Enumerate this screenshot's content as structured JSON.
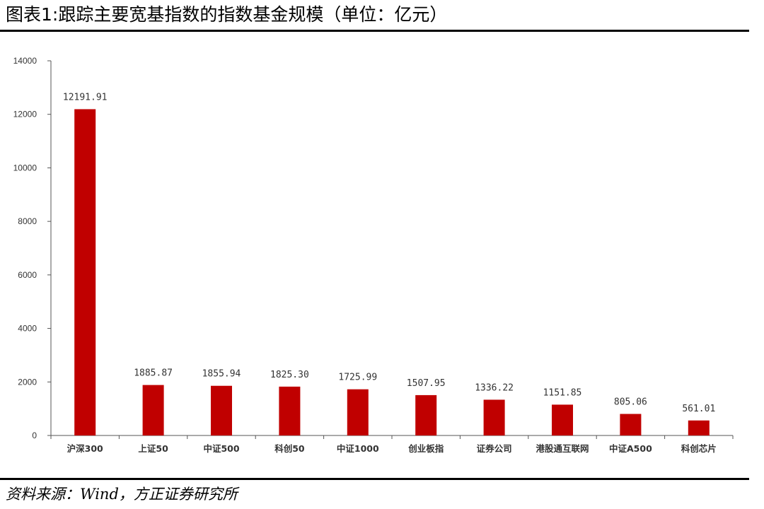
{
  "title": "图表1:跟踪主要宽基指数的指数基金规模（单位：亿元）",
  "source": "资料来源：Wind，方正证券研究所",
  "colors": {
    "bar": "#C00000",
    "axis": "#555555"
  },
  "chart_data": {
    "type": "bar",
    "title": "",
    "xlabel": "",
    "ylabel": "",
    "ylim": [
      0,
      14000
    ],
    "yticks": [
      0,
      2000,
      4000,
      6000,
      8000,
      10000,
      12000,
      14000
    ],
    "grid": false,
    "categories": [
      "沪深300",
      "上证50",
      "中证500",
      "科创50",
      "中证1000",
      "创业板指",
      "证券公司",
      "港股通互联网",
      "中证A500",
      "科创芯片"
    ],
    "values": [
      12191.91,
      1885.87,
      1855.94,
      1825.3,
      1725.99,
      1507.95,
      1336.22,
      1151.85,
      805.06,
      561.01
    ],
    "value_labels": [
      "12191.91",
      "1885.87",
      "1855.94",
      "1825.30",
      "1725.99",
      "1507.95",
      "1336.22",
      "1151.85",
      "805.06",
      "561.01"
    ]
  }
}
